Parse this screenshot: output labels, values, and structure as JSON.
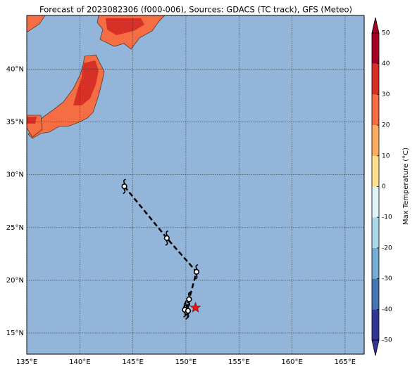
{
  "chart_data": {
    "type": "map",
    "title": "Forecast of 2023082306 (f000-006), Sources: GDACS (TC track), GFS (Meteo)",
    "xlim": [
      135,
      166.8
    ],
    "ylim": [
      13,
      45.1
    ],
    "xticks": [
      {
        "value": 135,
        "label": "135°E"
      },
      {
        "value": 140,
        "label": "140°E"
      },
      {
        "value": 145,
        "label": "145°E"
      },
      {
        "value": 150,
        "label": "150°E"
      },
      {
        "value": 155,
        "label": "155°E"
      },
      {
        "value": 160,
        "label": "160°E"
      },
      {
        "value": 165,
        "label": "165°E"
      }
    ],
    "yticks": [
      {
        "value": 15,
        "label": "15°N"
      },
      {
        "value": 20,
        "label": "20°N"
      },
      {
        "value": 25,
        "label": "25°N"
      },
      {
        "value": 30,
        "label": "30°N"
      },
      {
        "value": 35,
        "label": "35°N"
      },
      {
        "value": 40,
        "label": "40°N"
      }
    ],
    "grid": true,
    "ocean_color": "#93b5d9",
    "track": {
      "color": "#000000",
      "lon": [
        144.2,
        148.2,
        151.0,
        150.3,
        150.0,
        150.1,
        149.9,
        150.2
      ],
      "lat": [
        28.9,
        24.0,
        20.8,
        18.2,
        17.4,
        17.0,
        17.2,
        17.1
      ]
    },
    "current": {
      "lon": 150.9,
      "lat": 17.4,
      "color": "#e8141c"
    },
    "colorbar": {
      "label": "Max Temperature (°C)",
      "ticks": [
        -50,
        -40,
        -30,
        -20,
        -10,
        0,
        10,
        20,
        30,
        40,
        50
      ],
      "colors": [
        "#313695",
        "#4575b4",
        "#74add1",
        "#abd9e9",
        "#e0f3f8",
        "#fee090",
        "#fdae61",
        "#f46d43",
        "#d73027",
        "#a50026"
      ]
    }
  }
}
